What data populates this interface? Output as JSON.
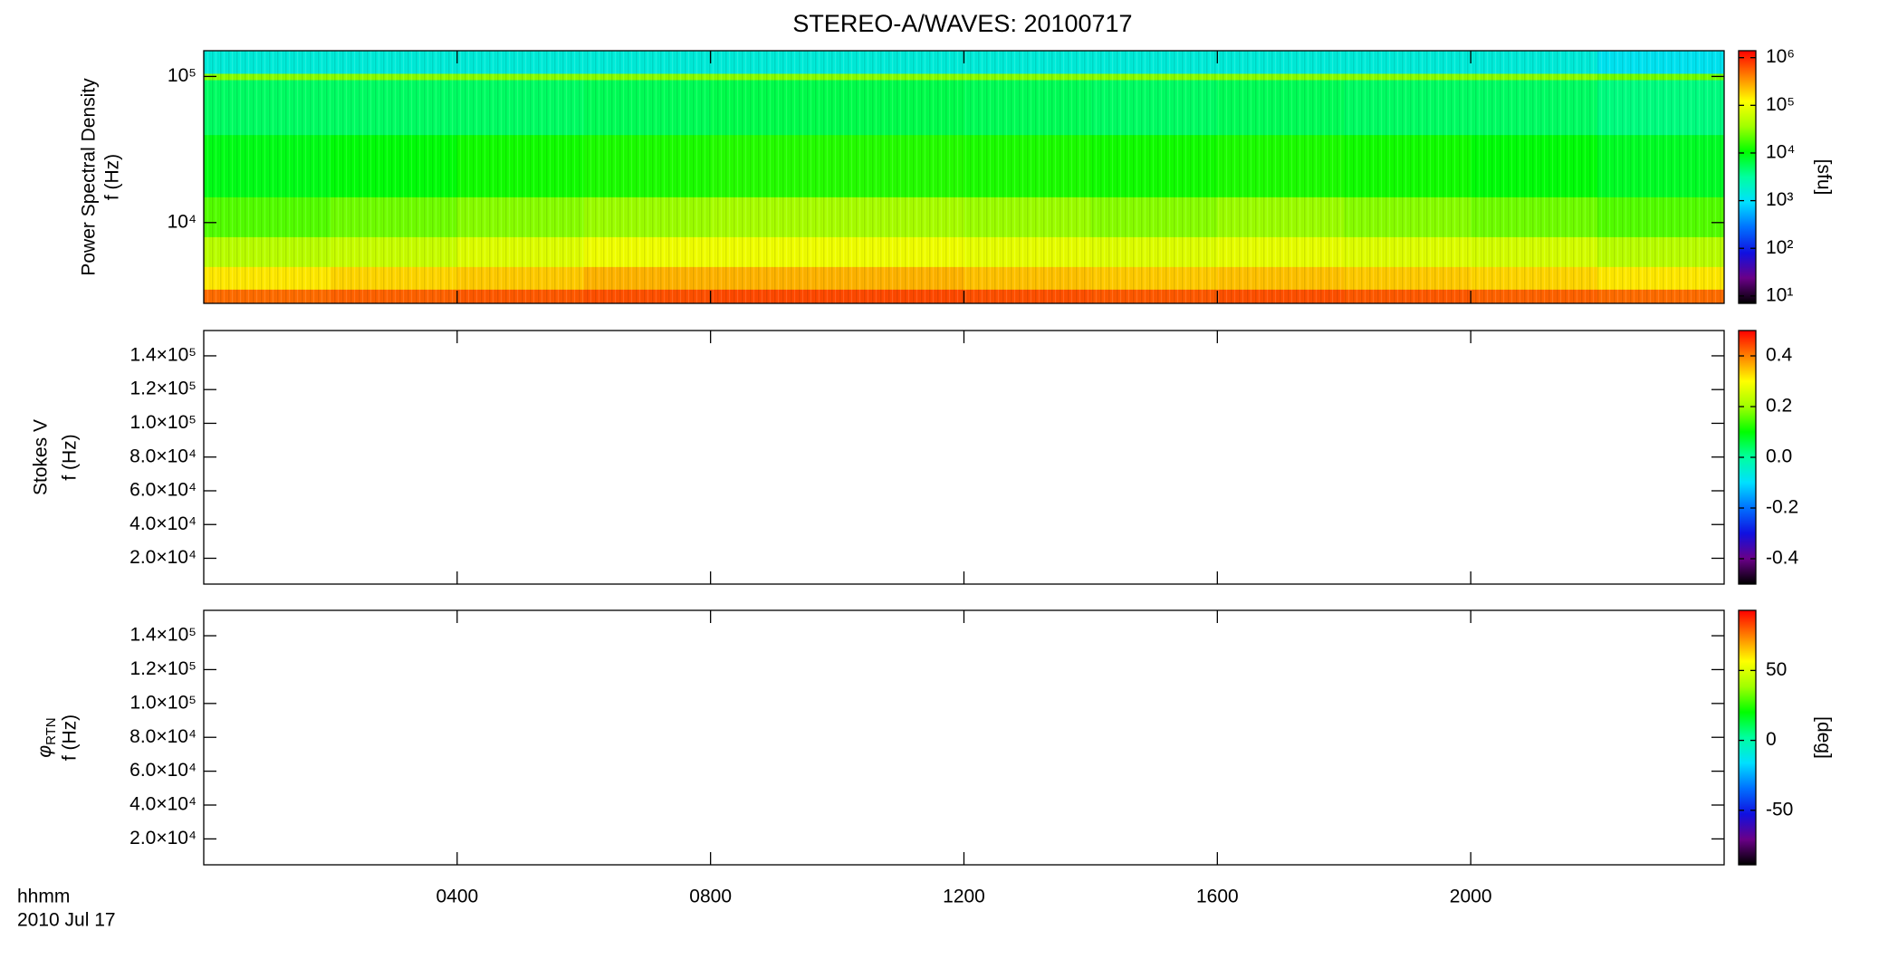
{
  "title": "STEREO-A/WAVES: 20100717",
  "colormap": [
    "#000000",
    "#6a0088",
    "#1010e0",
    "#0070ff",
    "#00e0ff",
    "#00ffa0",
    "#00ff00",
    "#a0ff00",
    "#ffff00",
    "#ff8000",
    "#ff0000"
  ],
  "chart_data": [
    {
      "type": "heatmap",
      "ylabel": "Power Spectral Density",
      "ylabel_unit": "f (Hz)",
      "yscale": "log",
      "xlim": [
        0,
        24
      ],
      "ylim": [
        2800,
        150000
      ],
      "yticks": [
        {
          "value": 10000,
          "label": "10⁴"
        },
        {
          "value": 100000,
          "label": "10⁵"
        }
      ],
      "x_edges": [
        0,
        2,
        4,
        6,
        8,
        10,
        12,
        14,
        16,
        18,
        20,
        22,
        24
      ],
      "y_edges": [
        2800,
        3500,
        5000,
        8000,
        15000,
        40000,
        95000,
        105000,
        150000
      ],
      "z": [
        [
          500000,
          550000,
          600000,
          650000,
          700000,
          700000,
          650000,
          600000,
          650000,
          600000,
          550000,
          500000
        ],
        [
          150000,
          180000,
          200000,
          250000,
          250000,
          250000,
          220000,
          200000,
          220000,
          200000,
          180000,
          150000
        ],
        [
          50000,
          60000,
          80000,
          100000,
          100000,
          100000,
          90000,
          80000,
          90000,
          80000,
          70000,
          50000
        ],
        [
          20000,
          25000,
          30000,
          35000,
          40000,
          40000,
          35000,
          30000,
          35000,
          30000,
          25000,
          20000
        ],
        [
          9000,
          10000,
          12000,
          13000,
          14000,
          14000,
          13000,
          12000,
          13000,
          12000,
          10000,
          8000
        ],
        [
          5000,
          5000,
          5000,
          5500,
          6000,
          6000,
          5500,
          5000,
          5500,
          5000,
          5000,
          4000
        ],
        [
          30000,
          30000,
          30000,
          30000,
          30000,
          30000,
          30000,
          30000,
          30000,
          30000,
          30000,
          25000
        ],
        [
          1500,
          1500,
          1500,
          1500,
          1500,
          1500,
          1500,
          1500,
          1500,
          1500,
          1500,
          1100
        ]
      ],
      "colorbar": {
        "scale": "log",
        "lim": [
          7,
          1400000
        ],
        "ticks": [
          {
            "value": 10,
            "label": "10¹"
          },
          {
            "value": 100,
            "label": "10²"
          },
          {
            "value": 1000,
            "label": "10³"
          },
          {
            "value": 10000,
            "label": "10⁴"
          },
          {
            "value": 100000,
            "label": "10⁵"
          },
          {
            "value": 1000000,
            "label": "10⁶"
          }
        ],
        "label": "[sfu]"
      }
    },
    {
      "type": "heatmap",
      "ylabel": "Stokes V",
      "ylabel_unit": "f (Hz)",
      "yscale": "linear",
      "xlim": [
        0,
        24
      ],
      "ylim": [
        4700,
        155000
      ],
      "yticks": [
        {
          "value": 20000,
          "label": "2.0×10⁴"
        },
        {
          "value": 40000,
          "label": "4.0×10⁴"
        },
        {
          "value": 60000,
          "label": "6.0×10⁴"
        },
        {
          "value": 80000,
          "label": "8.0×10⁴"
        },
        {
          "value": 100000,
          "label": "1.0×10⁵"
        },
        {
          "value": 120000,
          "label": "1.2×10⁵"
        },
        {
          "value": 140000,
          "label": "1.4×10⁵"
        }
      ],
      "colorbar": {
        "scale": "linear",
        "lim": [
          -0.5,
          0.5
        ],
        "ticks": [
          -0.4,
          -0.2,
          {
            "value": 0,
            "label": "0.0"
          },
          0.2,
          0.4
        ]
      }
    },
    {
      "type": "heatmap",
      "ylabel": "φ",
      "ylabel_sub": "RTN",
      "ylabel_unit": "f (Hz)",
      "yscale": "linear",
      "xlim": [
        0,
        24
      ],
      "ylim": [
        4700,
        155000
      ],
      "yticks": [
        {
          "value": 20000,
          "label": "2.0×10⁴"
        },
        {
          "value": 40000,
          "label": "4.0×10⁴"
        },
        {
          "value": 60000,
          "label": "6.0×10⁴"
        },
        {
          "value": 80000,
          "label": "8.0×10⁴"
        },
        {
          "value": 100000,
          "label": "1.0×10⁵"
        },
        {
          "value": 120000,
          "label": "1.2×10⁵"
        },
        {
          "value": 140000,
          "label": "1.4×10⁵"
        }
      ],
      "xticks": [
        {
          "value": 4,
          "label": "0400"
        },
        {
          "value": 8,
          "label": "0800"
        },
        {
          "value": 12,
          "label": "1200"
        },
        {
          "value": 16,
          "label": "1600"
        },
        {
          "value": 20,
          "label": "2000"
        }
      ],
      "xlabel": "hhmm",
      "xlabel_date": "2010 Jul 17",
      "colorbar": {
        "scale": "linear",
        "lim": [
          -89,
          93
        ],
        "ticks": [
          -50,
          0,
          50
        ],
        "label": "[deg]"
      }
    }
  ]
}
